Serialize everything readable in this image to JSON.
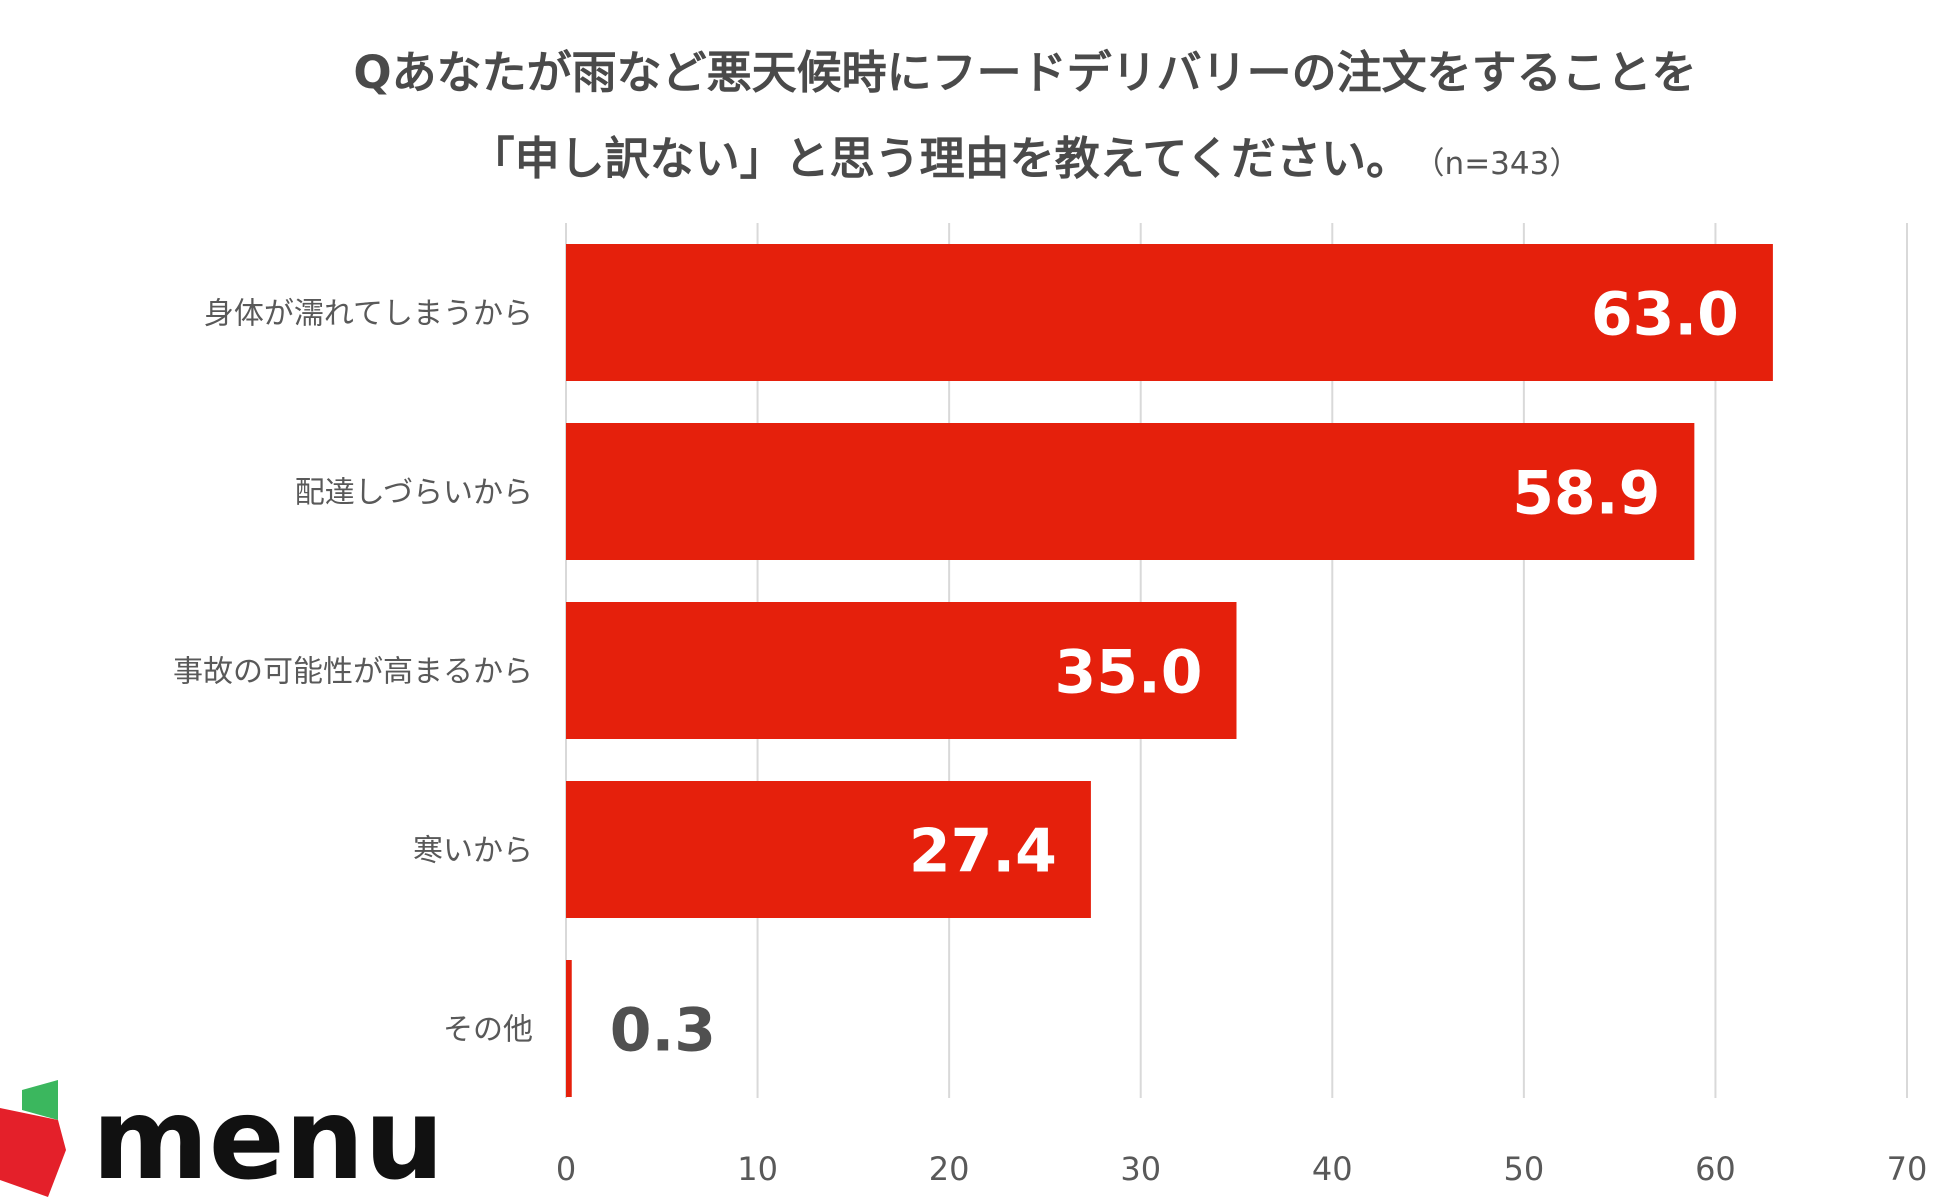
{
  "title_line1": "Qあなたが雨など悪天候時にフードデリバリーの注文をすることを",
  "title_line2": "「申し訳ない」と思う理由を教えてください。",
  "sample_size": "（n=343）",
  "brand": {
    "name": "menu",
    "red": "#e4202a",
    "green": "#3bb75e"
  },
  "colors": {
    "bar": "#e5200c",
    "bar_label_inside": "#ffffff",
    "bar_label_outside": "#505050",
    "grid": "#d9d9d9",
    "axis_text": "#595959",
    "category_text": "#595959"
  },
  "chart_data": {
    "type": "bar",
    "orientation": "horizontal",
    "categories": [
      "身体が濡れてしまうから",
      "配達しづらいから",
      "事故の可能性が高まるから",
      "寒いから",
      "その他"
    ],
    "values": [
      63.0,
      58.9,
      35.0,
      27.4,
      0.3
    ],
    "value_labels": [
      "63.0",
      "58.9",
      "35.0",
      "27.4",
      "0.3"
    ],
    "xlim": [
      0,
      70
    ],
    "xticks": [
      0,
      10,
      20,
      30,
      40,
      50,
      60,
      70
    ],
    "grid": true,
    "title": "Qあなたが雨など悪天候時にフードデリバリーの注文をすることを「申し訳ない」と思う理由を教えてください。",
    "xlabel": "",
    "ylabel": ""
  }
}
